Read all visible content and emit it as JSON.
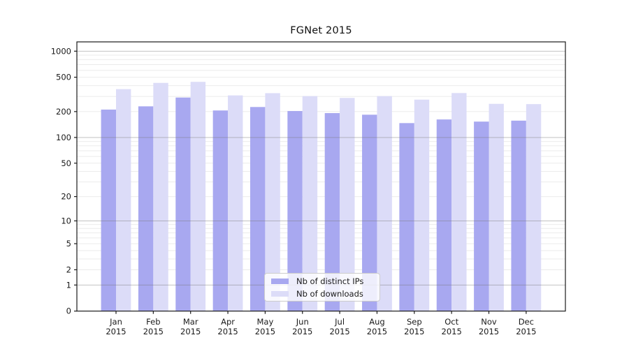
{
  "chart_data": {
    "type": "bar",
    "title": "FGNet 2015",
    "categories": [
      "Jan",
      "Feb",
      "Mar",
      "Apr",
      "May",
      "Jun",
      "Jul",
      "Aug",
      "Sep",
      "Oct",
      "Nov",
      "Dec"
    ],
    "x_tick_year": "2015",
    "x_tick_labels": [
      {
        "line1": "Jan",
        "line2": "2015"
      },
      {
        "line1": "Feb",
        "line2": "2015"
      },
      {
        "line1": "Mar",
        "line2": "2015"
      },
      {
        "line1": "Apr",
        "line2": "2015"
      },
      {
        "line1": "May",
        "line2": "2015"
      },
      {
        "line1": "Jun",
        "line2": "2015"
      },
      {
        "line1": "Jul",
        "line2": "2015"
      },
      {
        "line1": "Aug",
        "line2": "2015"
      },
      {
        "line1": "Sep",
        "line2": "2015"
      },
      {
        "line1": "Oct",
        "line2": "2015"
      },
      {
        "line1": "Nov",
        "line2": "2015"
      },
      {
        "line1": "Dec",
        "line2": "2015"
      }
    ],
    "series": [
      {
        "name": "Nb of distinct IPs",
        "color": "#a8a8f0",
        "values": [
          211,
          230,
          291,
          206,
          226,
          203,
          192,
          184,
          147,
          162,
          153,
          157
        ]
      },
      {
        "name": "Nb of downloads",
        "color": "#dcdcf8",
        "values": [
          364,
          430,
          442,
          308,
          327,
          302,
          288,
          302,
          275,
          328,
          246,
          244
        ]
      }
    ],
    "yscale": "symlog",
    "y_ticks": [
      1000,
      500,
      200,
      100,
      50,
      20,
      10,
      5,
      2,
      1,
      0
    ],
    "ylim": [
      0,
      1280
    ],
    "grid": {
      "minor_color": "#ebebeb",
      "major_color": "#787878",
      "major_values": [
        1,
        10,
        100,
        1000
      ]
    },
    "colors": {
      "spine": "#1a1a1a",
      "tick_text": "#1a1a1a"
    },
    "legend_position": "lower center"
  }
}
